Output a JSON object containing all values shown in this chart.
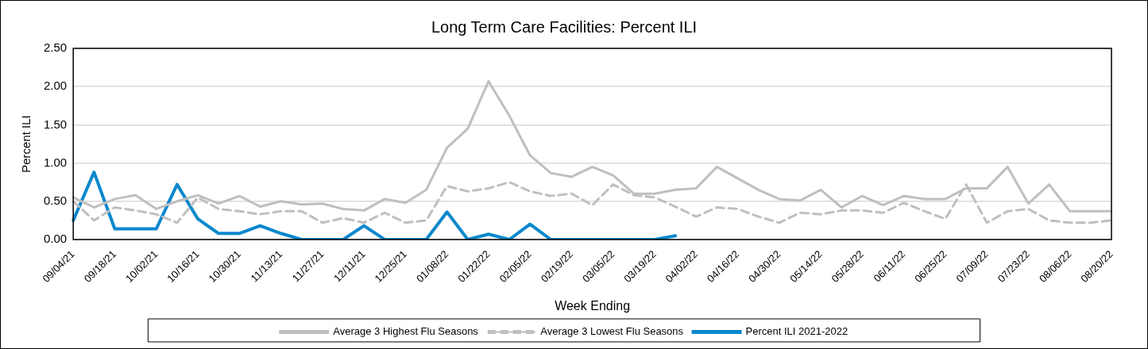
{
  "chart_data": {
    "type": "line",
    "title": "Long Term Care Facilities: Percent ILI",
    "xlabel": "Week Ending",
    "ylabel": "Percent ILI",
    "categories": [
      "09/04/21",
      null,
      "09/18/21",
      null,
      "10/02/21",
      null,
      "10/16/21",
      null,
      "10/30/21",
      null,
      "11/13/21",
      null,
      "11/27/21",
      null,
      "12/11/21",
      null,
      "12/25/21",
      null,
      "01/08/22",
      null,
      "01/22/22",
      null,
      "02/05/22",
      null,
      "02/19/22",
      null,
      "03/05/22",
      null,
      "03/19/22",
      null,
      "04/02/22",
      null,
      "04/16/22",
      null,
      "04/30/22",
      null,
      "05/14/22",
      null,
      "05/28/22",
      null,
      "06/11/22",
      null,
      "06/25/22",
      null,
      "07/09/22",
      null,
      "07/23/22",
      null,
      "08/06/22",
      null,
      "08/20/22"
    ],
    "series": [
      {
        "name": "Average 3 Highest Flu Seasons",
        "color": "#bfbfbf",
        "line_style": "solid",
        "values": [
          0.55,
          0.42,
          0.53,
          0.58,
          0.4,
          0.5,
          0.58,
          0.47,
          0.57,
          0.43,
          0.5,
          0.46,
          0.47,
          0.4,
          0.38,
          0.53,
          0.48,
          0.65,
          1.2,
          1.45,
          2.07,
          1.62,
          1.1,
          0.87,
          0.82,
          0.95,
          0.84,
          0.6,
          0.6,
          0.65,
          0.67,
          0.95,
          0.8,
          0.65,
          0.53,
          0.51,
          0.65,
          0.42,
          0.57,
          0.45,
          0.57,
          0.53,
          0.53,
          0.67,
          0.67,
          0.95,
          0.47,
          0.72,
          0.37,
          0.37,
          0.37
        ]
      },
      {
        "name": "Average 3 Lowest Flu Seasons",
        "color": "#bfbfbf",
        "line_style": "dashed",
        "values": [
          0.5,
          0.25,
          0.42,
          0.38,
          0.33,
          0.22,
          0.55,
          0.4,
          0.37,
          0.33,
          0.37,
          0.37,
          0.22,
          0.28,
          0.22,
          0.35,
          0.22,
          0.25,
          0.7,
          0.63,
          0.67,
          0.75,
          0.63,
          0.57,
          0.6,
          0.45,
          0.72,
          0.58,
          0.55,
          0.43,
          0.3,
          0.42,
          0.4,
          0.3,
          0.22,
          0.35,
          0.33,
          0.38,
          0.38,
          0.35,
          0.48,
          0.37,
          0.27,
          0.72,
          0.22,
          0.37,
          0.4,
          0.25,
          0.22,
          0.22,
          0.25
        ]
      },
      {
        "name": "Percent ILI 2021-2022",
        "color": "#0a88cc",
        "line_style": "solid",
        "values": [
          0.25,
          0.88,
          0.14,
          0.14,
          0.14,
          0.72,
          0.27,
          0.08,
          0.08,
          0.18,
          0.08,
          0,
          0,
          0,
          0.18,
          0,
          0,
          0,
          0.36,
          0,
          0.07,
          0,
          0.2,
          0,
          0,
          0,
          0,
          0,
          0,
          0.05,
          null,
          null,
          null,
          null,
          null,
          null,
          null,
          null,
          null,
          null,
          null,
          null,
          null,
          null,
          null,
          null,
          null,
          null,
          null,
          null,
          null
        ]
      }
    ],
    "ylim": [
      0,
      2.5
    ],
    "yticks": [
      {
        "value": 0,
        "label": "0.00"
      },
      {
        "value": 0.5,
        "label": "0.50"
      },
      {
        "value": 1,
        "label": "1.00"
      },
      {
        "value": 1.5,
        "label": "1.50"
      },
      {
        "value": 2,
        "label": "2.00"
      },
      {
        "value": 2.5,
        "label": "2.50"
      }
    ],
    "grid": "y",
    "legend": "bottom",
    "marker": "none"
  }
}
